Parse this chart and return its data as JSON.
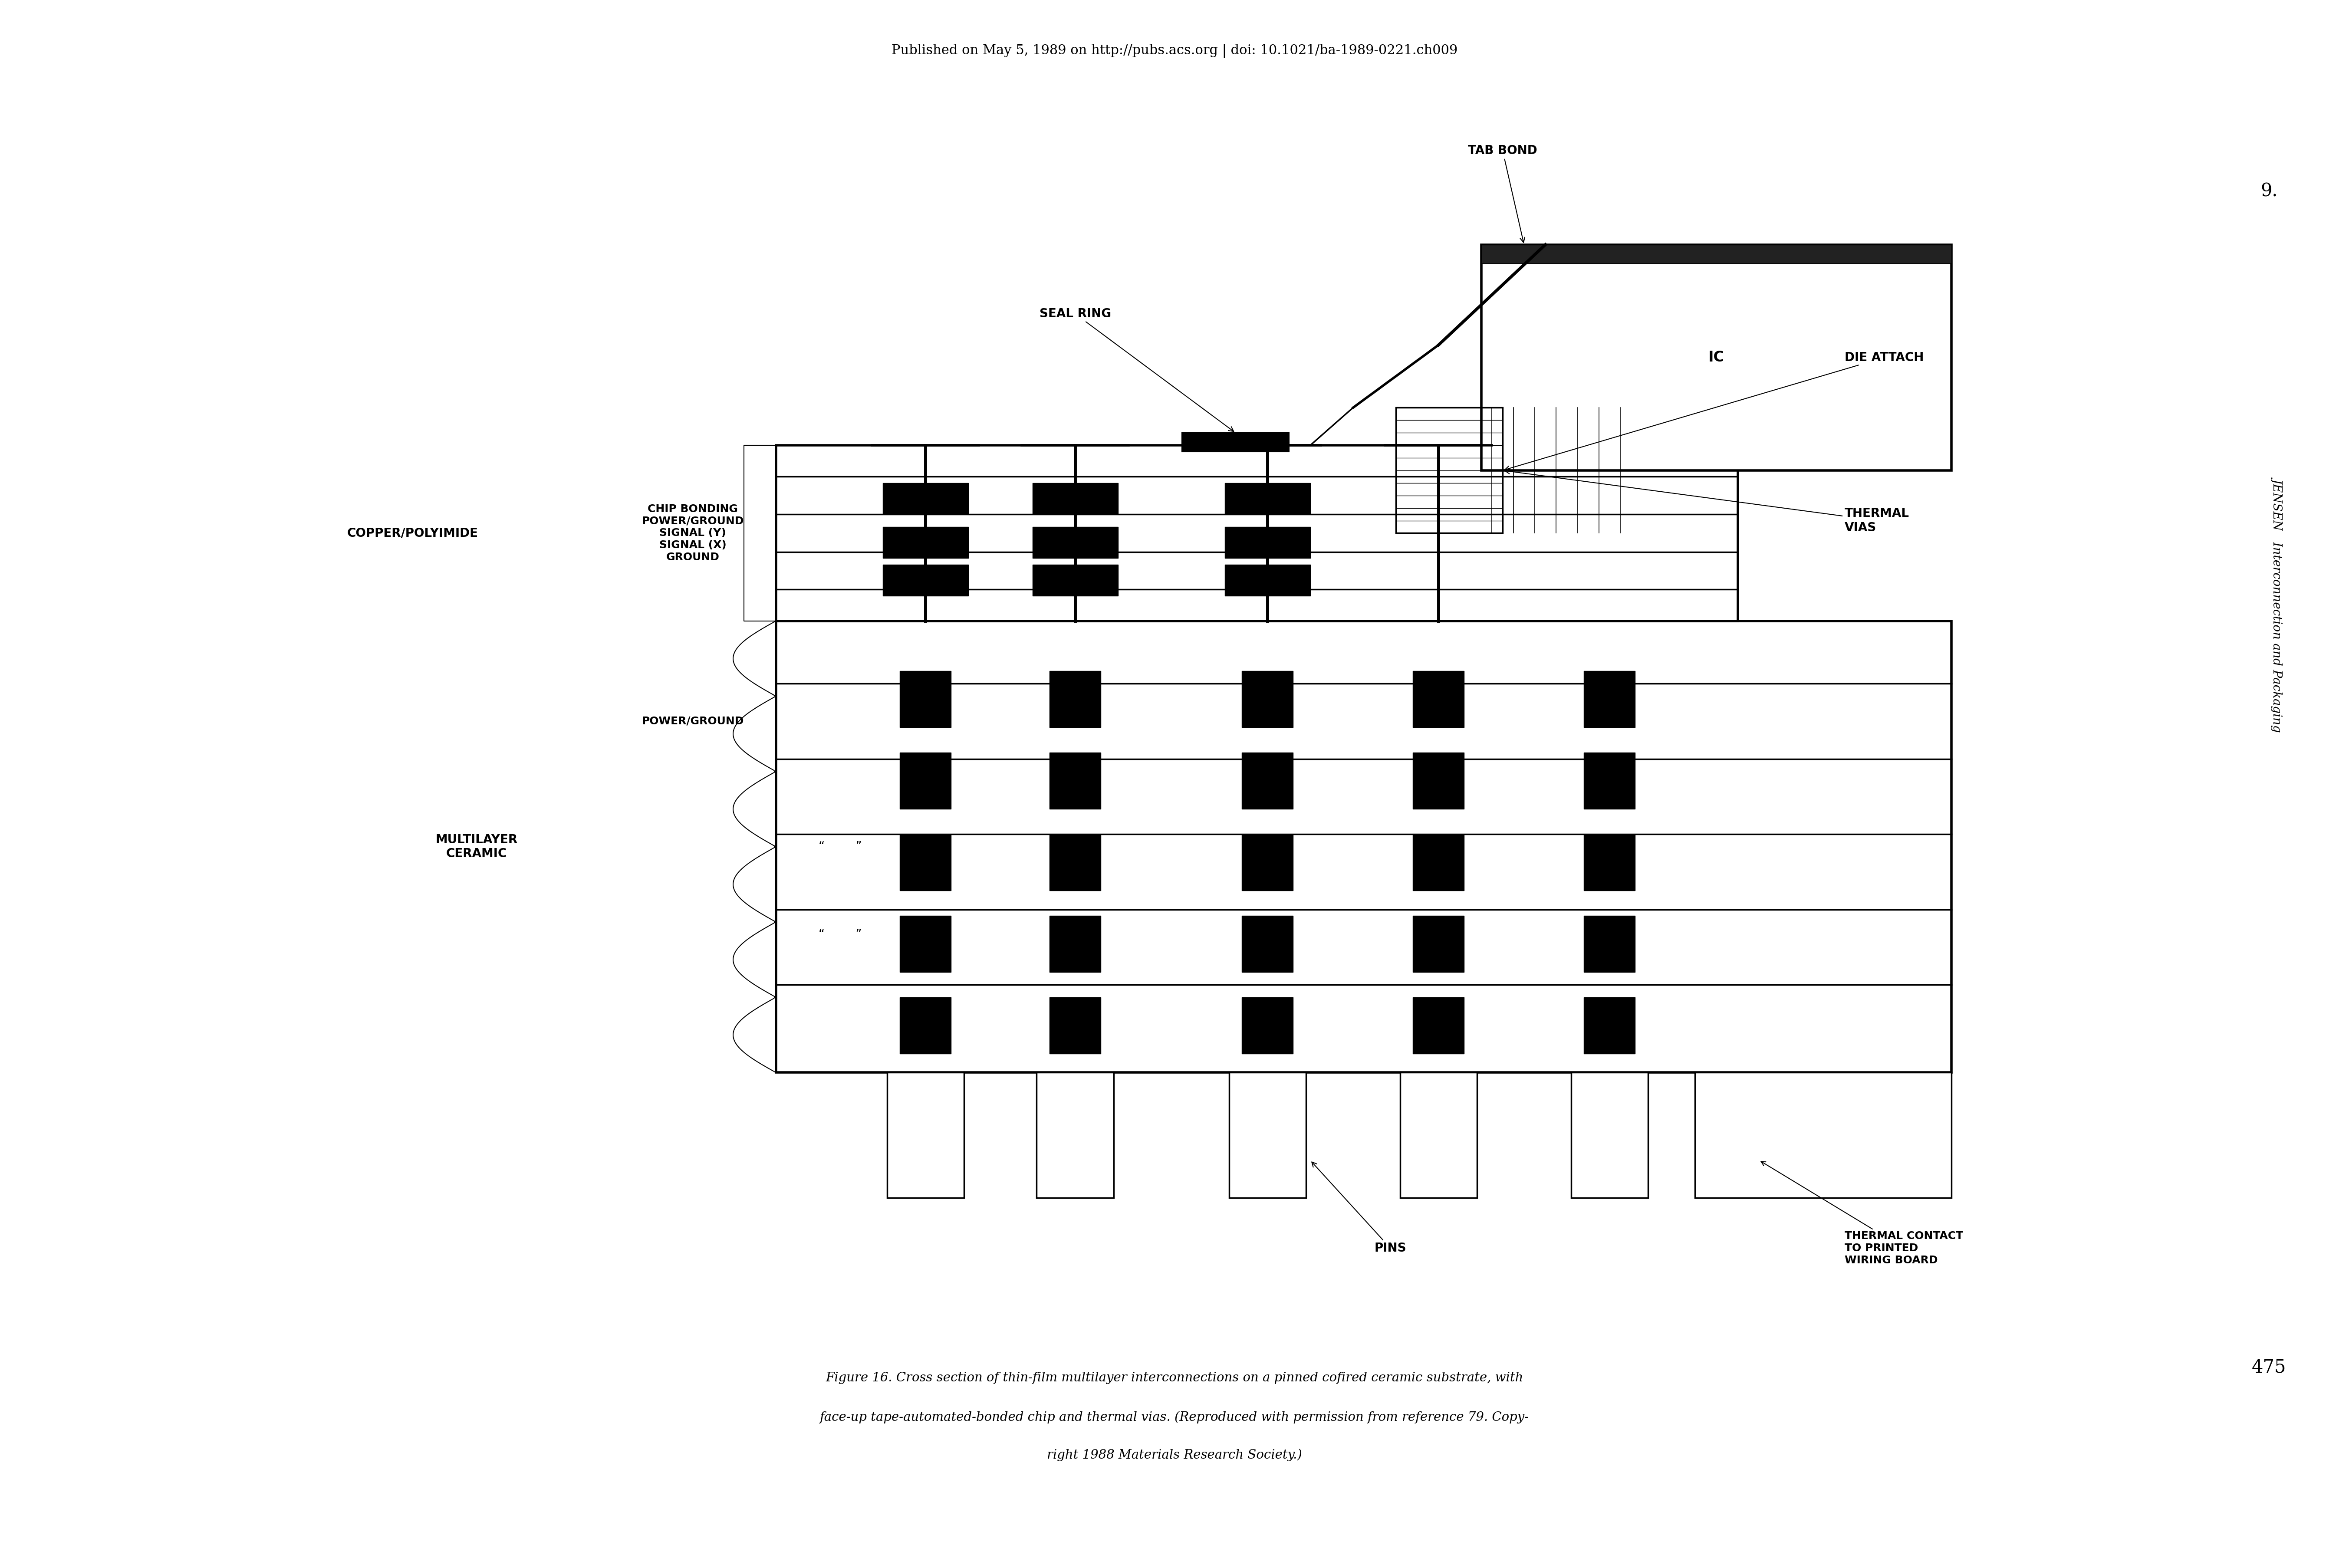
{
  "background_color": "#ffffff",
  "fig_width": 54.12,
  "fig_height": 36.13,
  "header": "Published on May 5, 1989 on http://pubs.acs.org | doi: 10.1021/ba-1989-0221.ch009",
  "caption": [
    "Figure 16. Cross section of thin-film multilayer interconnections on a pinned cofired ceramic substrate, with",
    "face-up tape-automated-bonded chip and thermal vias. (Reproduced with permission from reference 79. Copy-",
    "right 1988 Materials Research Society.)"
  ],
  "right_top": "9.",
  "right_mid": "JENSEN   Interconnection and Packaging",
  "right_bot": "475",
  "labels": {
    "tab_bond": "TAB BOND",
    "ic": "IC",
    "die_attach": "DIE ATTACH",
    "seal_ring": "SEAL RING",
    "thermal_vias": "THERMAL\nVIAS",
    "copper_polyimide": "COPPER/POLYIMIDE",
    "chip_bonding": "CHIP BONDING\nPOWER/GROUND\nSIGNAL (Y)\nSIGNAL (X)\nGROUND",
    "multilayer_ceramic": "MULTILAYER\nCERAMIC",
    "power_ground": "POWER/GROUND",
    "dots1": "“        ”",
    "dots2": "“        ”",
    "pins": "PINS",
    "thermal_contact": "THERMAL CONTACT\nTO PRINTED\nWIRING BOARD"
  }
}
